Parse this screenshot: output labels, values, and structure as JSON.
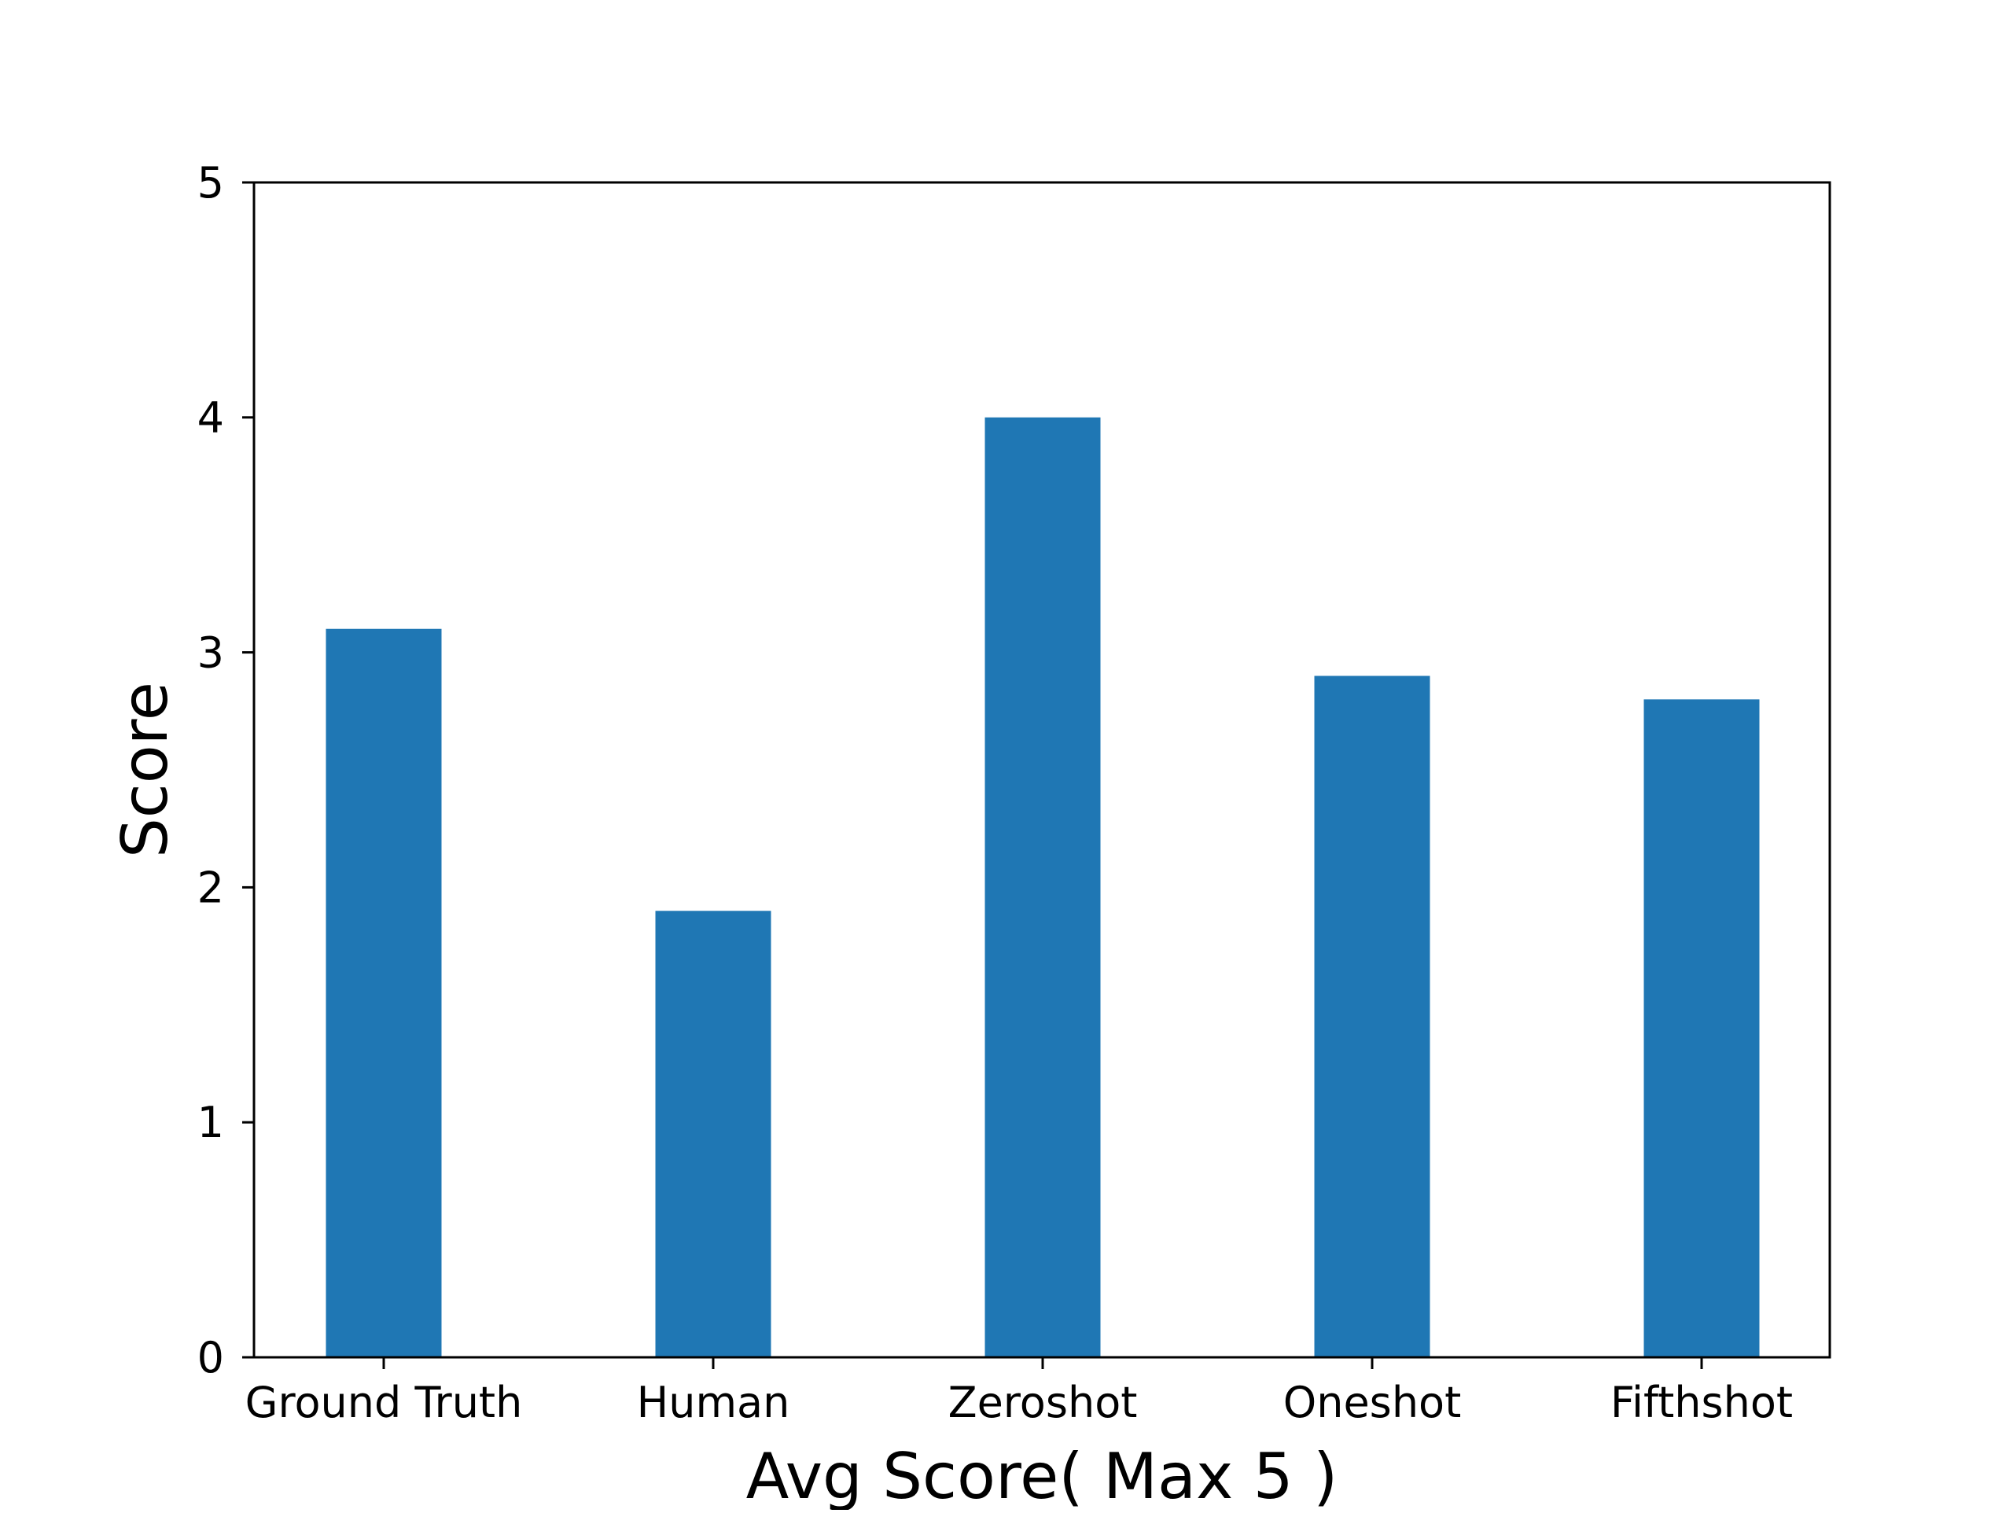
{
  "chart_data": {
    "type": "bar",
    "categories": [
      "Ground Truth",
      "Human",
      "Zeroshot",
      "Oneshot",
      "Fifthshot"
    ],
    "values": [
      3.1,
      1.9,
      4.0,
      2.9,
      2.8
    ],
    "xlabel": "Avg Score( Max 5 )",
    "ylabel": "Score",
    "ylim": [
      0,
      5
    ],
    "yticks": [
      "0",
      "1",
      "2",
      "3",
      "4",
      "5"
    ],
    "bar_color": "#1f77b4",
    "grid": false,
    "legend": "none"
  }
}
